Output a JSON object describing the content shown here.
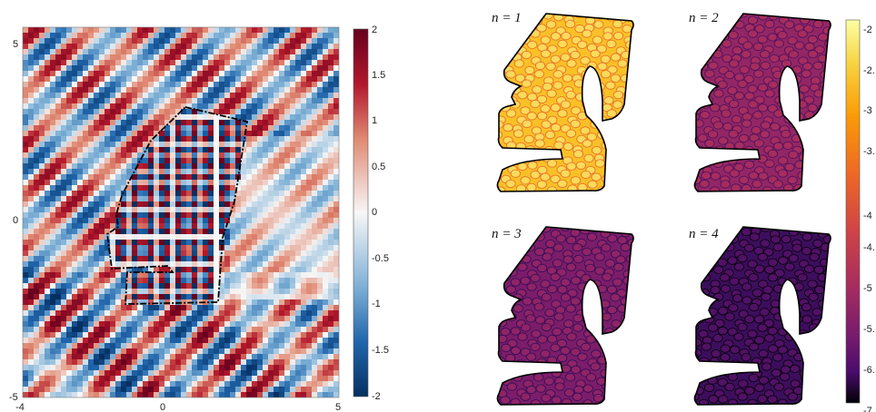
{
  "chart_data": [
    {
      "type": "heatmap",
      "title": "",
      "xlabel": "",
      "ylabel": "",
      "xlim": [
        -4,
        5
      ],
      "ylim": [
        -5,
        5
      ],
      "xticks": [
        "-4",
        "0",
        "5"
      ],
      "yticks": [
        "5",
        "0",
        "-5"
      ],
      "colorbar": {
        "colormap": "red-white-blue",
        "range": [
          -2,
          2
        ],
        "ticks": [
          "2",
          "1.5",
          "1",
          "0.5",
          "0",
          "-0.5",
          "-1",
          "-1.5",
          "-2"
        ]
      },
      "grid": false
    },
    {
      "type": "heatmap",
      "title": "",
      "panels": [
        {
          "label": "n = 1",
          "level": 0.88
        },
        {
          "label": "n = 2",
          "level": 0.42
        },
        {
          "label": "n = 3",
          "level": 0.36
        },
        {
          "label": "n = 4",
          "level": 0.2
        }
      ],
      "colorbar": {
        "colormap": "inferno",
        "range": [
          -7,
          -2
        ],
        "ticks": [
          "-2",
          "-2.",
          "-3",
          "-3.",
          "-4",
          "-4.",
          "-5",
          "-5.",
          "-6.",
          "-7"
        ]
      },
      "grid": false
    }
  ]
}
